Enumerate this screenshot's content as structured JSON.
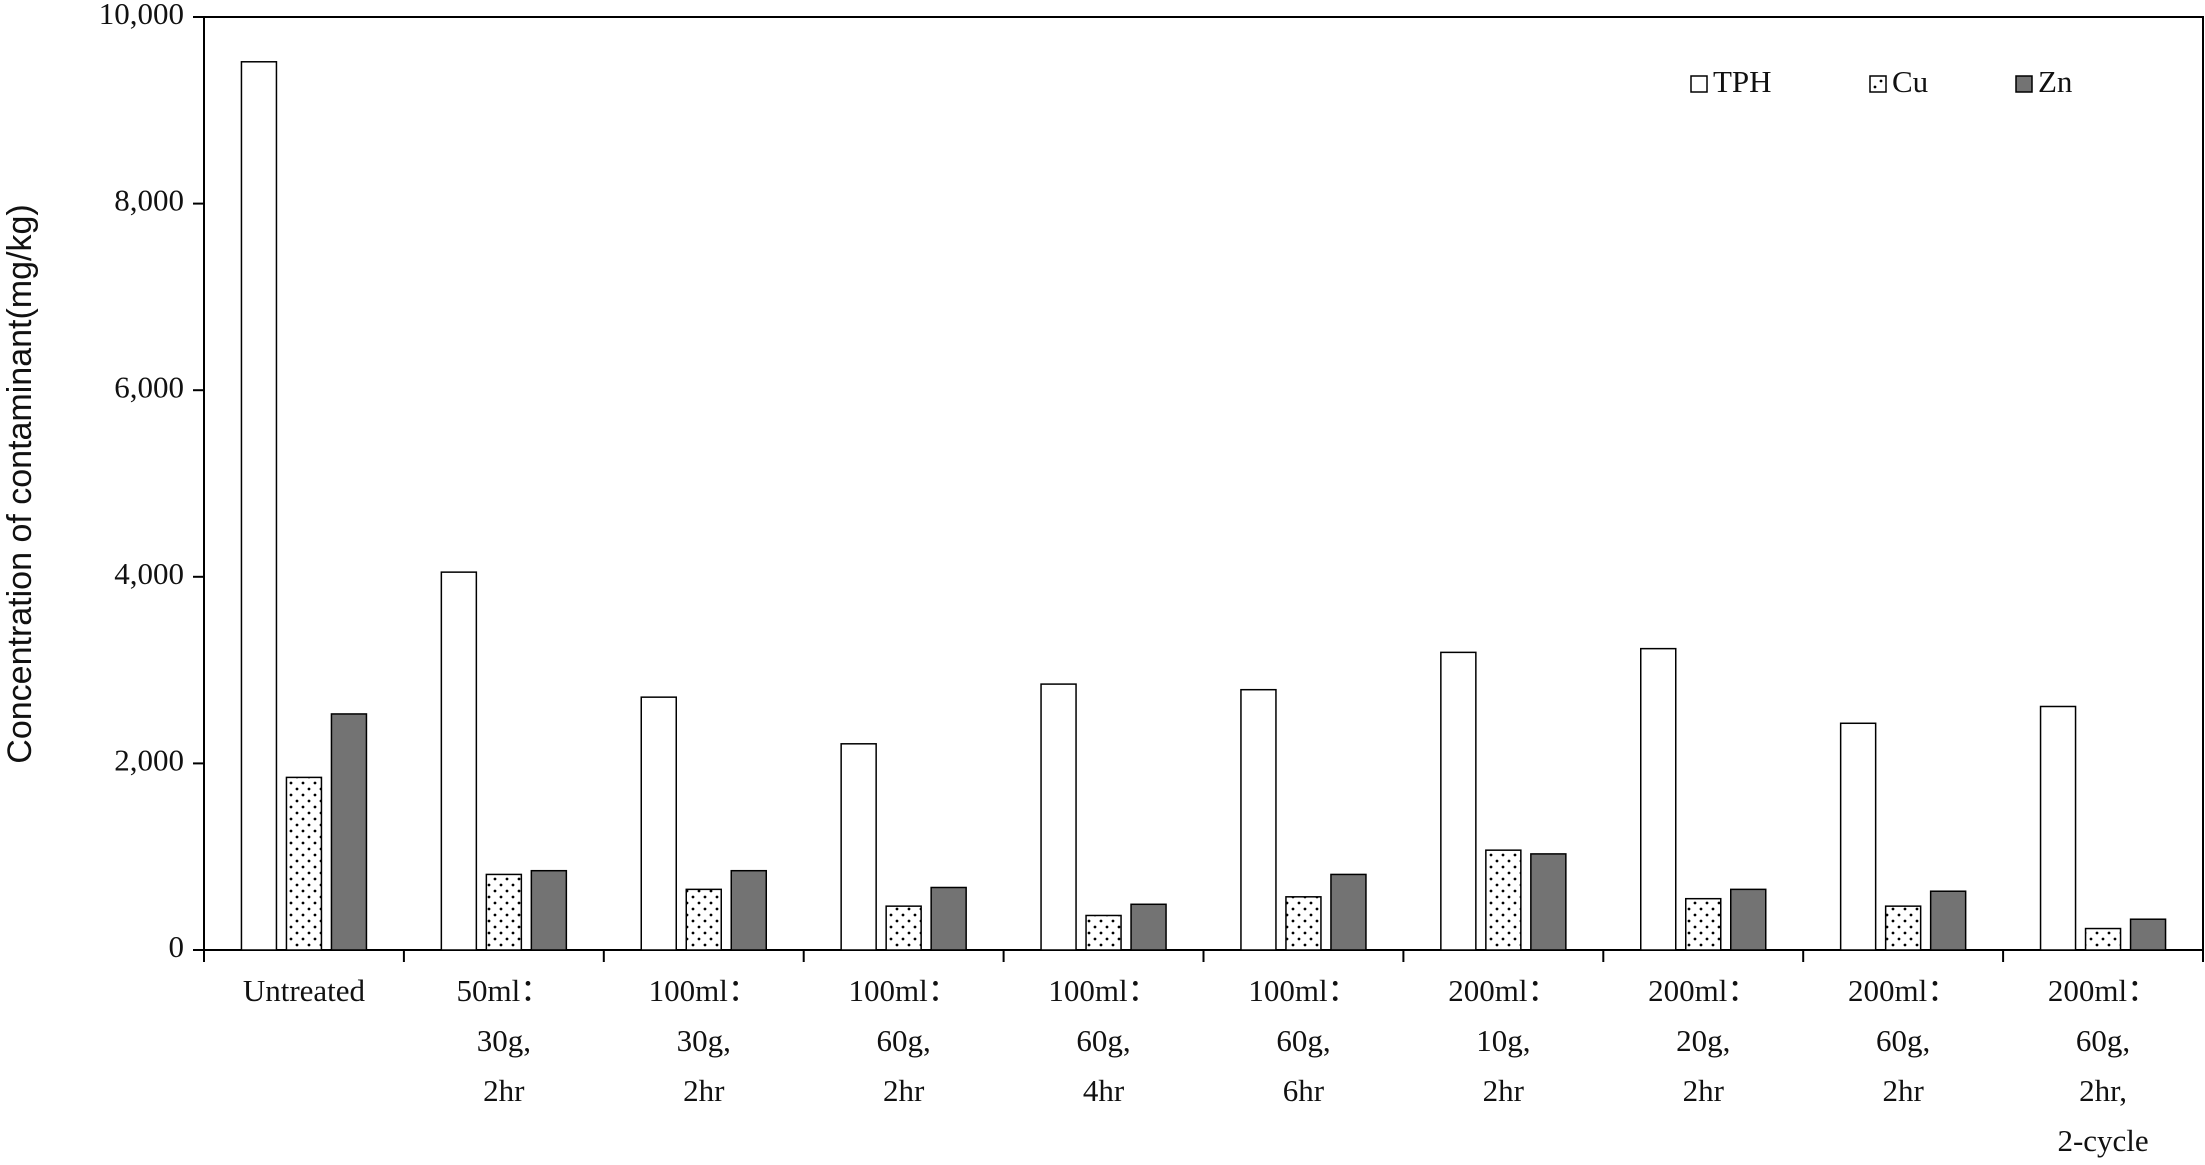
{
  "chart_data": {
    "type": "bar",
    "y_label": "Concentration of contaminant(mg/kg)",
    "categories": [
      [
        "Untreated"
      ],
      [
        "50ml：",
        "30g,",
        "2hr"
      ],
      [
        "100ml：",
        "30g,",
        "2hr"
      ],
      [
        "100ml：",
        "60g,",
        "2hr"
      ],
      [
        "100ml：",
        "60g,",
        "4hr"
      ],
      [
        "100ml：",
        "60g,",
        "6hr"
      ],
      [
        "200ml：",
        "10g,",
        "2hr"
      ],
      [
        "200ml：",
        "20g,",
        "2hr"
      ],
      [
        "200ml：",
        "60g,",
        "2hr"
      ],
      [
        "200ml：",
        "60g,",
        "2hr,",
        "2-cycle"
      ]
    ],
    "series": [
      {
        "name": "TPH",
        "color": "#ffffff",
        "values": [
          9520,
          4050,
          2710,
          2210,
          2850,
          2790,
          3190,
          3230,
          2430,
          2610
        ]
      },
      {
        "name": "Cu",
        "color": "#ffffff",
        "pattern": "dots",
        "values": [
          1850,
          810,
          650,
          470,
          370,
          570,
          1070,
          550,
          470,
          230
        ]
      },
      {
        "name": "Zn",
        "color": "#737373",
        "values": [
          2530,
          850,
          850,
          670,
          490,
          810,
          1030,
          650,
          630,
          330
        ]
      }
    ],
    "ylim": [
      0,
      10000
    ],
    "yticks": [
      0,
      {
        "value": 2000,
        "label": "2,000"
      },
      {
        "value": 4000,
        "label": "4,000"
      },
      {
        "value": 6000,
        "label": "6,000"
      },
      {
        "value": 8000,
        "label": "8,000"
      },
      {
        "value": 10000,
        "label": "10,000"
      }
    ],
    "legend": "top-right"
  }
}
